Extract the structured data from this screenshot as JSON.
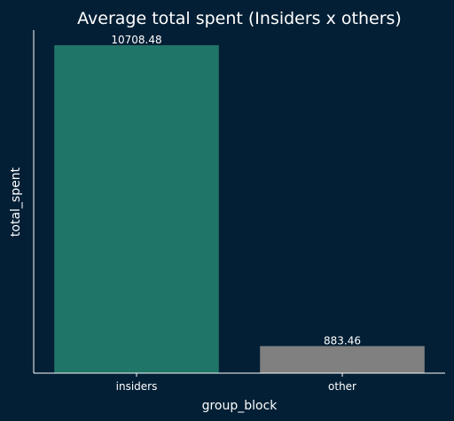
{
  "chart_data": {
    "type": "bar",
    "title": "Average total spent (Insiders x others)",
    "xlabel": "group_block",
    "ylabel": "total_spent",
    "categories": [
      "insiders",
      "other"
    ],
    "values": [
      10708.48,
      883.46
    ],
    "data_labels": [
      "10708.48",
      "883.46"
    ],
    "colors": [
      "#1f7567",
      "#808080"
    ],
    "background": "#031f35",
    "ylim": [
      0,
      11200
    ],
    "grid": false,
    "y_ticks_visible": false,
    "legend": "none"
  }
}
